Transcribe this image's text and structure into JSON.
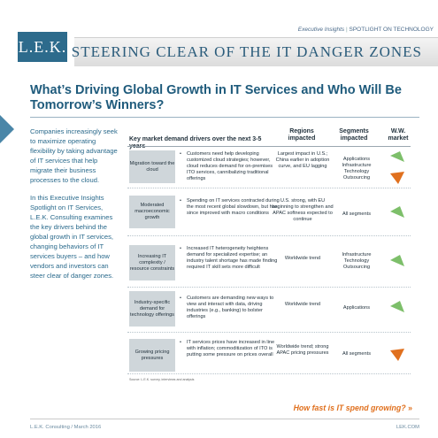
{
  "header": {
    "section": "Executive Insights",
    "separator": "|",
    "spotlight": "SPOTLIGHT ON TECHNOLOGY",
    "logo": "L.E.K.",
    "banner_title": "STEERING CLEAR OF THE IT DANGER ZONES"
  },
  "heading": "What’s Driving Global Growth in IT Services and Who Will Be Tomorrow’s Winners?",
  "intro": {
    "p1": "Companies increasingly seek to maximize operating flexibility by taking advantage of IT services that help migrate their business processes to the cloud.",
    "p2": "In this Executive Insights Spotlight on IT Services, L.E.K. Consulting examines the key drivers behind the global growth in IT services, changing behaviors of IT services buyers – and how vendors and investors can steer clear of danger zones."
  },
  "table": {
    "col_driver": "Key market demand drivers over the next 3-5 years",
    "col_regions": "Regions impacted",
    "col_segments": "Segments impacted",
    "col_ww": "W.W. market",
    "rows": [
      {
        "driver": "Migration toward the cloud",
        "bullet": "Customers need help developing customized cloud strategies; however, cloud reduces demand for on-premises ITO services, cannibalizing traditional offerings",
        "regions": "Largest impact in U.S.; China earlier in adoption curve, and EU lagging",
        "segments": "Applications\nInfrastructure Technology Outsourcing",
        "ww": "up-and-down",
        "ww_colors": [
          "#7dbf6a",
          "#e0701e"
        ]
      },
      {
        "driver": "Moderated macroeconomic growth",
        "bullet": "Spending on IT services contracted during the most recent global slowdown, but has since improved with macro conditions",
        "regions": "U.S. strong, with EU beginning to strengthen and APAC softness expected to continue",
        "segments": "All segments",
        "ww": "up",
        "ww_colors": [
          "#7dbf6a"
        ]
      },
      {
        "driver": "Increasing IT complexity / resource constraints",
        "bullet": "Increased IT heterogeneity heightens demand for specialized expertise; an industry talent shortage has made finding required IT skill sets more difficult",
        "regions": "Worldwide trend",
        "segments": "Infrastructure Technology Outsourcing",
        "ww": "up",
        "ww_colors": [
          "#7dbf6a"
        ]
      },
      {
        "driver": "Industry-specific demand for technology offerings",
        "bullet": "Customers are demanding new ways to view and interact with data, driving industries (e.g., banking) to bolster offerings",
        "regions": "Worldwide trend",
        "segments": "Applications",
        "ww": "up",
        "ww_colors": [
          "#7dbf6a"
        ]
      },
      {
        "driver": "Growing pricing pressures",
        "bullet": "IT services prices have increased in line with inflation; commoditization of ITO is putting some pressure on prices overall",
        "regions": "Worldwide trend; strong APAC pricing pressures",
        "segments": "All segments",
        "ww": "down",
        "ww_colors": [
          "#e0701e"
        ]
      }
    ],
    "source": "Source: L.E.K. survey, interviews and analysis"
  },
  "footer": {
    "question": "How fast is IT spend growing?",
    "chevrons": "»",
    "left": "L.E.K. Consulting / March 2016",
    "right": "LEK.COM"
  },
  "colors": {
    "brand": "#2d6b8c",
    "heading": "#1f5b7c",
    "accent_orange": "#e0701e",
    "accent_green": "#7dbf6a"
  }
}
